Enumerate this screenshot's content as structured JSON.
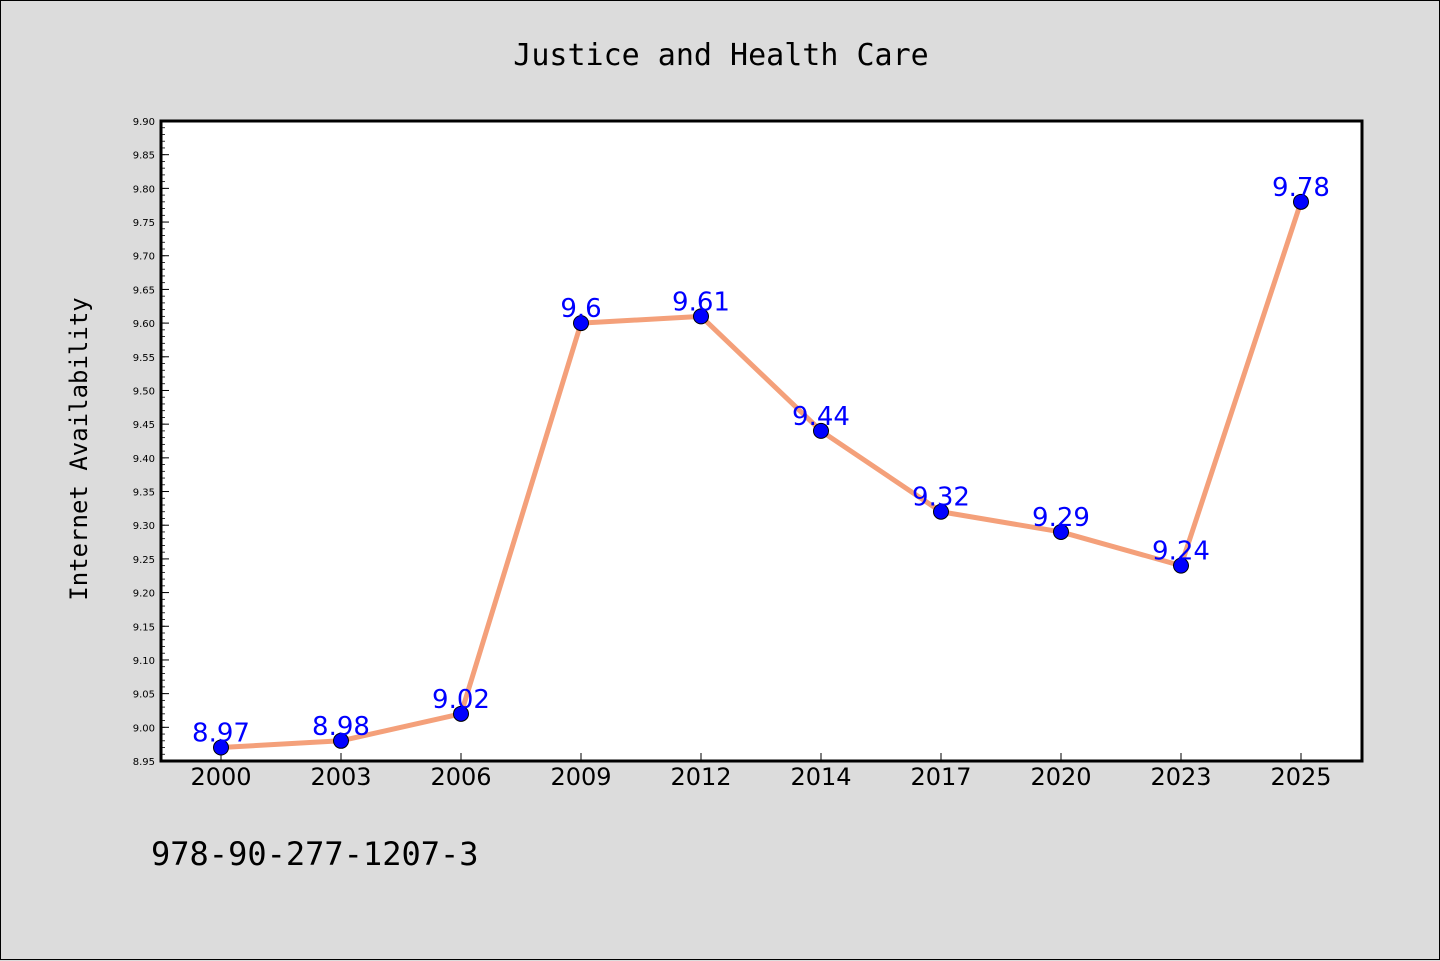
{
  "chart_data": {
    "type": "line",
    "title": "Justice and Health Care",
    "xlabel": "",
    "ylabel": "Internet Availability",
    "categories": [
      "2000",
      "2003",
      "2006",
      "2009",
      "2012",
      "2014",
      "2017",
      "2020",
      "2023",
      "2025"
    ],
    "series": [
      {
        "values": [
          8.97,
          8.98,
          9.02,
          9.6,
          9.61,
          9.44,
          9.32,
          9.29,
          9.24,
          9.78
        ],
        "data_labels": [
          "8.97",
          "8.98",
          "9.02",
          "9.6",
          "9.61",
          "9.44",
          "9.32",
          "9.29",
          "9.24",
          "9.78"
        ],
        "line_color": "#f4a07a",
        "marker_color": "#0000ff",
        "label_color": "#0000ff"
      }
    ],
    "ylim": [
      8.95,
      9.9
    ],
    "yticks": [
      "8.95",
      "9.00",
      "9.05",
      "9.10",
      "9.15",
      "9.20",
      "9.25",
      "9.30",
      "9.35",
      "9.40",
      "9.45",
      "9.50",
      "9.55",
      "9.60",
      "9.65",
      "9.70",
      "9.75",
      "9.80",
      "9.85",
      "9.90"
    ],
    "grid": false,
    "legend": "none",
    "footer": "978-90-277-1207-3",
    "background_color": "#dcdcdc",
    "plot_background_color": "#ffffff"
  }
}
